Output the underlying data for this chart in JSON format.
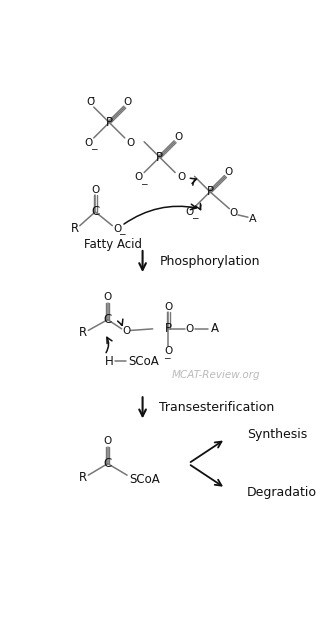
{
  "bg_color": "#ffffff",
  "line_color": "#777777",
  "text_color": "#111111",
  "arrow_color": "#111111",
  "watermark": "MCAT-Review.org",
  "watermark_color": "#bbbbbb",
  "step1_label": "Phosphorylation",
  "step2_label": "Transesterification",
  "synthesis_label": "Synthesis",
  "degradation_label": "Degradation",
  "fatty_acid_label": "Fatty Acid"
}
